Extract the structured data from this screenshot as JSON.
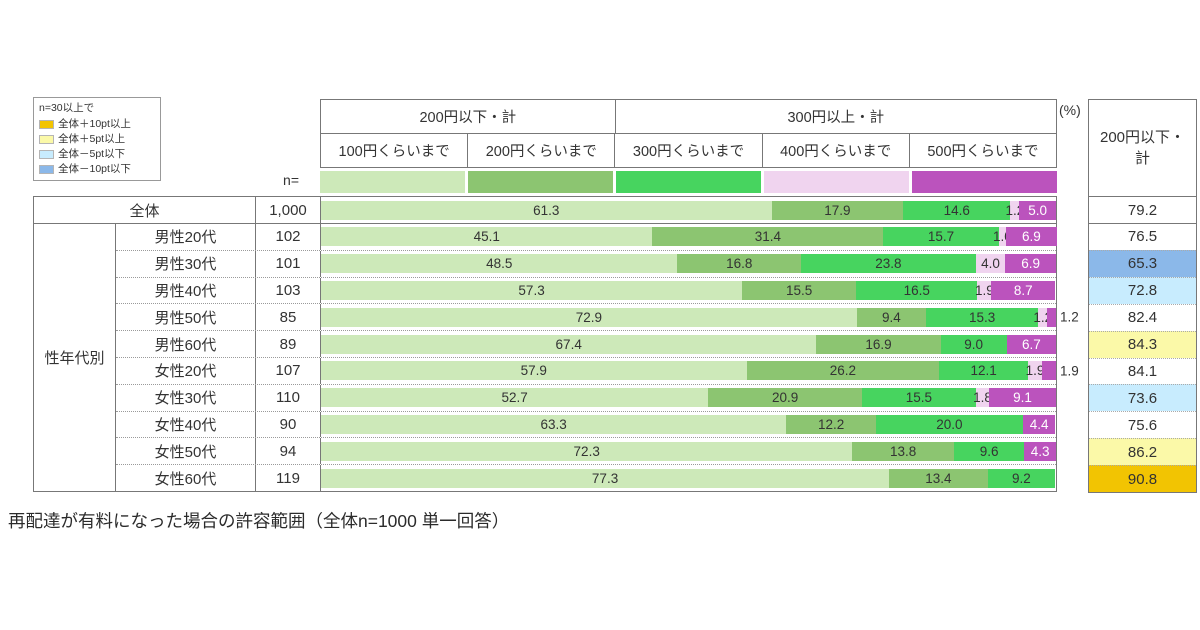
{
  "legend": {
    "note": "n=30以上で",
    "items": [
      {
        "label": "全体＋10pt以上",
        "color": "#f2c402"
      },
      {
        "label": "全体＋5pt以上",
        "color": "#fbf9a8"
      },
      {
        "label": "全体－5pt以下",
        "color": "#c8ecfe"
      },
      {
        "label": "全体－10pt以下",
        "color": "#8bb8e9"
      }
    ]
  },
  "chart_data": {
    "type": "bar",
    "stacked": true,
    "orientation": "horizontal",
    "unit": "(%)",
    "n_label": "n=",
    "group_label": "性年代別",
    "summary_header": "200円以下・計",
    "title": "再配達が有料になった場合の許容範囲（全体n=1000 単一回答）",
    "xlim": [
      0,
      100
    ],
    "group_headers": [
      {
        "label": "200円以下・計",
        "span": 2
      },
      {
        "label": "300円以上・計",
        "span": 3
      }
    ],
    "series_labels": [
      "100円くらいまで",
      "200円くらいまで",
      "300円くらいまで",
      "400円くらいまで",
      "500円くらいまで"
    ],
    "series_colors": [
      "#cde9b9",
      "#8cc571",
      "#47d45f",
      "#f0d4ef",
      "#bb53bd"
    ],
    "rows": [
      {
        "label": "全体",
        "n": "1,000",
        "values": [
          "61.3",
          "17.9",
          "14.6",
          "1.2",
          "5.0"
        ],
        "total": "79.2",
        "total_bg": "#ffffff"
      },
      {
        "label": "男性20代",
        "n": "102",
        "values": [
          "45.1",
          "31.4",
          "15.7",
          "1.0",
          "6.9"
        ],
        "total": "76.5",
        "total_bg": "#ffffff"
      },
      {
        "label": "男性30代",
        "n": "101",
        "values": [
          "48.5",
          "16.8",
          "23.8",
          "4.0",
          "6.9"
        ],
        "total": "65.3",
        "total_bg": "#8bb8e9"
      },
      {
        "label": "男性40代",
        "n": "103",
        "values": [
          "57.3",
          "15.5",
          "16.5",
          "1.9",
          "8.7"
        ],
        "total": "72.8",
        "total_bg": "#c8ecfe"
      },
      {
        "label": "男性50代",
        "n": "85",
        "values": [
          "72.9",
          "9.4",
          "15.3",
          "1.2",
          "1.2"
        ],
        "total": "82.4",
        "total_bg": "#ffffff",
        "outside_last": true
      },
      {
        "label": "男性60代",
        "n": "89",
        "values": [
          "67.4",
          "16.9",
          "9.0",
          "0",
          "6.7"
        ],
        "total": "84.3",
        "total_bg": "#fbf9a8"
      },
      {
        "label": "女性20代",
        "n": "107",
        "values": [
          "57.9",
          "26.2",
          "12.1",
          "1.9",
          "1.9"
        ],
        "total": "84.1",
        "total_bg": "#ffffff",
        "outside_last": true
      },
      {
        "label": "女性30代",
        "n": "110",
        "values": [
          "52.7",
          "20.9",
          "15.5",
          "1.8",
          "9.1"
        ],
        "total": "73.6",
        "total_bg": "#c8ecfe"
      },
      {
        "label": "女性40代",
        "n": "90",
        "values": [
          "63.3",
          "12.2",
          "20.0",
          "0",
          "4.4"
        ],
        "total": "75.6",
        "total_bg": "#ffffff"
      },
      {
        "label": "女性50代",
        "n": "94",
        "values": [
          "72.3",
          "13.8",
          "9.6",
          "0",
          "4.3"
        ],
        "total": "86.2",
        "total_bg": "#fbf9a8"
      },
      {
        "label": "女性60代",
        "n": "119",
        "values": [
          "77.3",
          "13.4",
          "9.2",
          "0",
          "0"
        ],
        "total": "90.8",
        "total_bg": "#f2c402"
      }
    ]
  }
}
